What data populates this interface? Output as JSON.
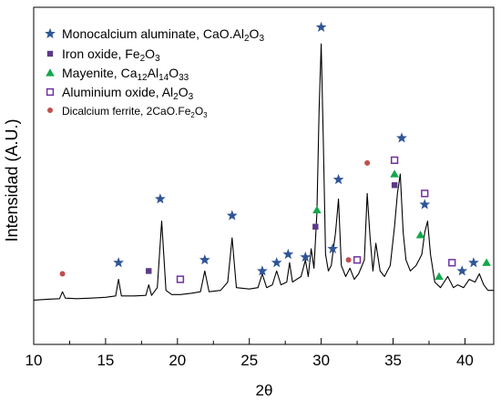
{
  "chart_data": {
    "type": "line",
    "xlabel": "2θ",
    "ylabel": "Intensidad (A.U.)",
    "xlim": [
      10,
      42
    ],
    "ylim": [
      0,
      100
    ],
    "xticks": [
      10,
      15,
      20,
      25,
      30,
      35,
      40
    ],
    "grid": false,
    "legend_position": "top-left",
    "legend": [
      {
        "key": "ca",
        "marker": "star",
        "color": "#2f5597",
        "parts": [
          {
            "t": "Monocalcium aluminate, CaO.Al",
            "s": "n"
          },
          {
            "t": "2",
            "s": "sub"
          },
          {
            "t": "O",
            "s": "n"
          },
          {
            "t": "3",
            "s": "sub"
          }
        ],
        "small": false
      },
      {
        "key": "fe",
        "marker": "square",
        "color": "#5b3a8a",
        "parts": [
          {
            "t": "Iron oxide, Fe",
            "s": "n"
          },
          {
            "t": "2",
            "s": "sub"
          },
          {
            "t": "O",
            "s": "n"
          },
          {
            "t": "3",
            "s": "sub"
          }
        ],
        "small": false
      },
      {
        "key": "may",
        "marker": "triangle",
        "color": "#13a84b",
        "parts": [
          {
            "t": "Mayenite, Ca",
            "s": "n"
          },
          {
            "t": "12",
            "s": "sub"
          },
          {
            "t": "Al",
            "s": "n"
          },
          {
            "t": "14",
            "s": "sub"
          },
          {
            "t": "O",
            "s": "n"
          },
          {
            "t": "33",
            "s": "sub"
          }
        ],
        "small": false
      },
      {
        "key": "al",
        "marker": "open-square",
        "color": "#7030a0",
        "parts": [
          {
            "t": "Aluminium oxide, Al",
            "s": "n"
          },
          {
            "t": "2",
            "s": "sub"
          },
          {
            "t": "O",
            "s": "n"
          },
          {
            "t": "3",
            "s": "sub"
          }
        ],
        "small": false
      },
      {
        "key": "dcf",
        "marker": "circle",
        "color": "#c0504d",
        "parts": [
          {
            "t": "Dicalcium ferrite, 2CaO.Fe",
            "s": "n"
          },
          {
            "t": "2",
            "s": "sub"
          },
          {
            "t": "O",
            "s": "n"
          },
          {
            "t": "3",
            "s": "sub"
          }
        ],
        "small": true
      }
    ],
    "series": [
      {
        "color": "#000000",
        "x": [
          10.0,
          11.0,
          11.8,
          12.0,
          12.2,
          13.0,
          14.0,
          15.0,
          15.7,
          15.9,
          16.1,
          17.0,
          17.8,
          18.0,
          18.2,
          18.6,
          18.9,
          19.2,
          19.6,
          20.2,
          21.0,
          21.6,
          21.9,
          22.2,
          23.0,
          23.5,
          23.8,
          24.1,
          25.0,
          25.6,
          25.9,
          26.2,
          26.6,
          26.9,
          27.2,
          27.6,
          27.8,
          28.0,
          28.6,
          28.9,
          29.1,
          29.3,
          29.5,
          29.7,
          29.85,
          30.0,
          30.15,
          30.3,
          30.5,
          30.7,
          30.85,
          31.0,
          31.2,
          31.4,
          31.7,
          32.0,
          32.3,
          32.6,
          33.0,
          33.2,
          33.4,
          33.6,
          33.8,
          34.1,
          34.4,
          34.8,
          35.1,
          35.3,
          35.5,
          35.7,
          35.9,
          36.2,
          36.6,
          37.0,
          37.2,
          37.4,
          37.6,
          37.9,
          38.3,
          38.8,
          39.2,
          39.5,
          39.9,
          40.3,
          40.7,
          41.0,
          41.3,
          41.6,
          42.0
        ],
        "y": [
          3.5,
          3.8,
          4.0,
          6.5,
          4.2,
          4.0,
          4.2,
          4.5,
          5.0,
          11.0,
          5.0,
          5.0,
          5.2,
          9.0,
          5.2,
          8.0,
          32.0,
          7.0,
          5.5,
          5.5,
          6.0,
          6.5,
          14.0,
          6.5,
          7.0,
          10.0,
          26.0,
          8.0,
          7.5,
          8.0,
          13.0,
          8.0,
          9.0,
          14.0,
          9.0,
          10.0,
          17.0,
          10.0,
          12.0,
          18.0,
          12.0,
          22.0,
          15.0,
          35.0,
          72.0,
          96.0,
          60.0,
          20.0,
          14.0,
          16.0,
          22.0,
          28.0,
          40.0,
          16.0,
          12.0,
          15.0,
          11.0,
          13.0,
          18.0,
          42.0,
          26.0,
          14.0,
          24.0,
          14.0,
          12.0,
          16.0,
          30.0,
          42.0,
          49.0,
          28.0,
          18.0,
          14.0,
          16.0,
          20.0,
          28.0,
          32.0,
          20.0,
          10.0,
          8.0,
          12.0,
          8.0,
          9.0,
          8.0,
          11.0,
          10.0,
          13.0,
          9.0,
          7.0,
          7.0
        ]
      }
    ],
    "markers": [
      {
        "type": "circle",
        "color": "#c0504d",
        "x": 12.0,
        "y": 13
      },
      {
        "type": "star",
        "color": "#2f5597",
        "x": 15.9,
        "y": 17
      },
      {
        "type": "square",
        "color": "#5b3a8a",
        "x": 18.0,
        "y": 14
      },
      {
        "type": "star",
        "color": "#2f5597",
        "x": 18.8,
        "y": 40
      },
      {
        "type": "open-square",
        "color": "#7030a0",
        "x": 20.2,
        "y": 11
      },
      {
        "type": "star",
        "color": "#2f5597",
        "x": 21.9,
        "y": 18
      },
      {
        "type": "star",
        "color": "#2f5597",
        "x": 23.8,
        "y": 34
      },
      {
        "type": "star",
        "color": "#2f5597",
        "x": 25.9,
        "y": 14
      },
      {
        "type": "star",
        "color": "#2f5597",
        "x": 26.9,
        "y": 17
      },
      {
        "type": "star",
        "color": "#2f5597",
        "x": 27.7,
        "y": 20
      },
      {
        "type": "star",
        "color": "#2f5597",
        "x": 28.9,
        "y": 19
      },
      {
        "type": "square",
        "color": "#5b3a8a",
        "x": 29.6,
        "y": 30
      },
      {
        "type": "triangle",
        "color": "#13a84b",
        "x": 29.7,
        "y": 36
      },
      {
        "type": "star",
        "color": "#2f5597",
        "x": 30.0,
        "y": 102
      },
      {
        "type": "star",
        "color": "#2f5597",
        "x": 30.8,
        "y": 22
      },
      {
        "type": "star",
        "color": "#2f5597",
        "x": 31.2,
        "y": 47
      },
      {
        "type": "circle",
        "color": "#c0504d",
        "x": 31.9,
        "y": 18
      },
      {
        "type": "open-square",
        "color": "#7030a0",
        "x": 32.5,
        "y": 18
      },
      {
        "type": "circle",
        "color": "#c0504d",
        "x": 33.2,
        "y": 53
      },
      {
        "type": "open-square",
        "color": "#7030a0",
        "x": 35.1,
        "y": 54
      },
      {
        "type": "triangle",
        "color": "#13a84b",
        "x": 35.1,
        "y": 49
      },
      {
        "type": "square",
        "color": "#5b3a8a",
        "x": 35.1,
        "y": 45
      },
      {
        "type": "star",
        "color": "#2f5597",
        "x": 35.6,
        "y": 62
      },
      {
        "type": "triangle",
        "color": "#13a84b",
        "x": 36.9,
        "y": 27
      },
      {
        "type": "open-square",
        "color": "#7030a0",
        "x": 37.2,
        "y": 42
      },
      {
        "type": "star",
        "color": "#2f5597",
        "x": 37.2,
        "y": 38
      },
      {
        "type": "triangle",
        "color": "#13a84b",
        "x": 38.2,
        "y": 12
      },
      {
        "type": "open-square",
        "color": "#7030a0",
        "x": 39.1,
        "y": 17
      },
      {
        "type": "star",
        "color": "#2f5597",
        "x": 39.8,
        "y": 14
      },
      {
        "type": "star",
        "color": "#2f5597",
        "x": 40.6,
        "y": 17
      },
      {
        "type": "triangle",
        "color": "#13a84b",
        "x": 41.5,
        "y": 17
      }
    ]
  }
}
